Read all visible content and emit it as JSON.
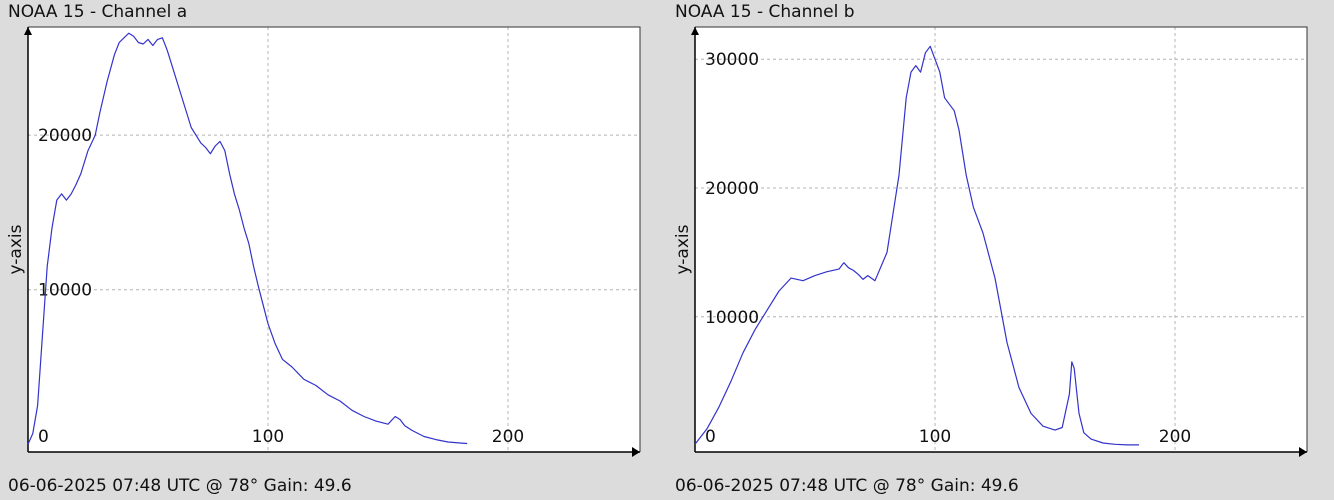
{
  "chart_data": [
    {
      "type": "line",
      "title": "NOAA 15 - Channel a",
      "footer": "06-06-2025 07:48 UTC @ 78° Gain: 49.6",
      "ylabel": "y-axis",
      "xlim": [
        0,
        255
      ],
      "ylim": [
        -500,
        27000
      ],
      "xticks": [
        0,
        100,
        200
      ],
      "yticks": [
        10000,
        20000
      ],
      "grid": true,
      "color": "#3333cc",
      "series": [
        {
          "x": [
            0,
            2,
            4,
            6,
            8,
            10,
            12,
            14,
            16,
            18,
            20,
            22,
            25,
            28,
            30,
            33,
            36,
            38,
            40,
            42,
            44,
            46,
            48,
            50,
            52,
            54,
            56,
            58,
            60,
            62,
            64,
            66,
            68,
            70,
            72,
            74,
            76,
            78,
            80,
            82,
            84,
            86,
            88,
            90,
            92,
            94,
            96,
            98,
            100,
            103,
            106,
            110,
            115,
            120,
            125,
            130,
            135,
            140,
            145,
            150,
            153,
            155,
            157,
            160,
            165,
            170,
            175,
            180,
            183
          ],
          "y": [
            0,
            700,
            2500,
            7000,
            11500,
            14000,
            15800,
            16200,
            15800,
            16200,
            16800,
            17500,
            19000,
            20000,
            21500,
            23500,
            25200,
            26000,
            26300,
            26600,
            26400,
            26000,
            25900,
            26200,
            25800,
            26200,
            26300,
            25500,
            24500,
            23500,
            22500,
            21500,
            20500,
            20000,
            19500,
            19200,
            18800,
            19300,
            19600,
            19000,
            17500,
            16200,
            15200,
            14000,
            13000,
            11500,
            10200,
            9000,
            7800,
            6500,
            5500,
            5000,
            4200,
            3800,
            3200,
            2800,
            2200,
            1800,
            1500,
            1300,
            1800,
            1600,
            1200,
            900,
            500,
            300,
            150,
            80,
            50
          ]
        }
      ]
    },
    {
      "type": "line",
      "title": "NOAA 15 - Channel b",
      "footer": "06-06-2025 07:48 UTC @ 78° Gain: 49.6",
      "ylabel": "y-axis",
      "xlim": [
        0,
        255
      ],
      "ylim": [
        -500,
        32500
      ],
      "xticks": [
        0,
        100,
        200
      ],
      "yticks": [
        10000,
        20000,
        30000
      ],
      "grid": true,
      "color": "#3333cc",
      "series": [
        {
          "x": [
            0,
            5,
            10,
            15,
            20,
            25,
            30,
            35,
            40,
            45,
            50,
            55,
            60,
            62,
            64,
            66,
            68,
            70,
            72,
            75,
            80,
            85,
            88,
            90,
            92,
            94,
            96,
            98,
            100,
            102,
            104,
            106,
            108,
            110,
            113,
            116,
            120,
            125,
            130,
            135,
            140,
            145,
            150,
            153,
            156,
            157,
            158,
            160,
            162,
            165,
            170,
            175,
            180,
            185
          ],
          "y": [
            100,
            1300,
            3000,
            5000,
            7200,
            9000,
            10500,
            12000,
            13000,
            12800,
            13200,
            13500,
            13700,
            14200,
            13800,
            13600,
            13300,
            12900,
            13200,
            12800,
            15000,
            21000,
            27000,
            29000,
            29500,
            29000,
            30500,
            31000,
            30000,
            29000,
            27000,
            26500,
            26000,
            24500,
            21000,
            18500,
            16500,
            13000,
            8000,
            4500,
            2500,
            1500,
            1200,
            1400,
            4000,
            6500,
            6000,
            2500,
            1000,
            500,
            200,
            100,
            50,
            50
          ]
        }
      ]
    }
  ]
}
